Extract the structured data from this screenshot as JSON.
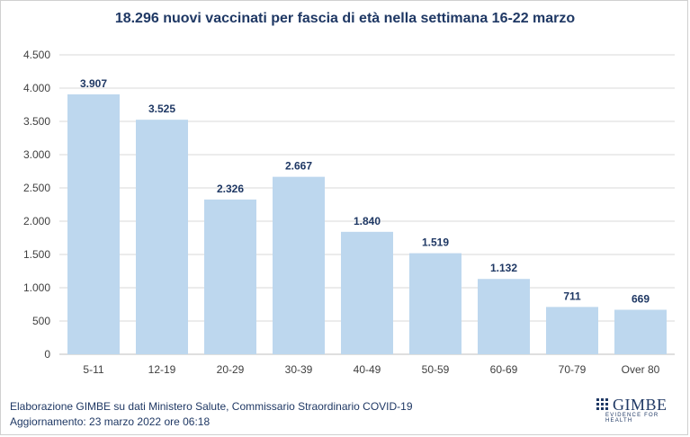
{
  "chart_data": {
    "type": "bar",
    "title": "18.296 nuovi vaccinati per fascia di età nella settimana 16-22 marzo",
    "categories": [
      "5-11",
      "12-19",
      "20-29",
      "30-39",
      "40-49",
      "50-59",
      "60-69",
      "70-79",
      "Over 80"
    ],
    "values": [
      3907,
      3525,
      2326,
      2667,
      1840,
      1519,
      1132,
      711,
      669
    ],
    "value_labels": [
      "3.907",
      "3.525",
      "2.326",
      "2.667",
      "1.840",
      "1.519",
      "1.132",
      "711",
      "669"
    ],
    "ylim": [
      0,
      4500
    ],
    "yticks": [
      0,
      500,
      1000,
      1500,
      2000,
      2500,
      3000,
      3500,
      4000,
      4500
    ],
    "ytick_labels": [
      "0",
      "500",
      "1.000",
      "1.500",
      "2.000",
      "2.500",
      "3.000",
      "3.500",
      "4.000",
      "4.500"
    ],
    "xlabel": "",
    "ylabel": "",
    "grid": true,
    "bar_color": "#bdd7ee",
    "label_color": "#1f3864"
  },
  "footer": {
    "line1": "Elaborazione GIMBE su dati Ministero Salute, Commissario Straordinario COVID-19",
    "line2": "Aggiornamento: 23 marzo 2022 ore 06:18"
  },
  "logo": {
    "name": "GIMBE",
    "tagline": "EVIDENCE FOR HEALTH",
    "color": "#1f3864"
  }
}
